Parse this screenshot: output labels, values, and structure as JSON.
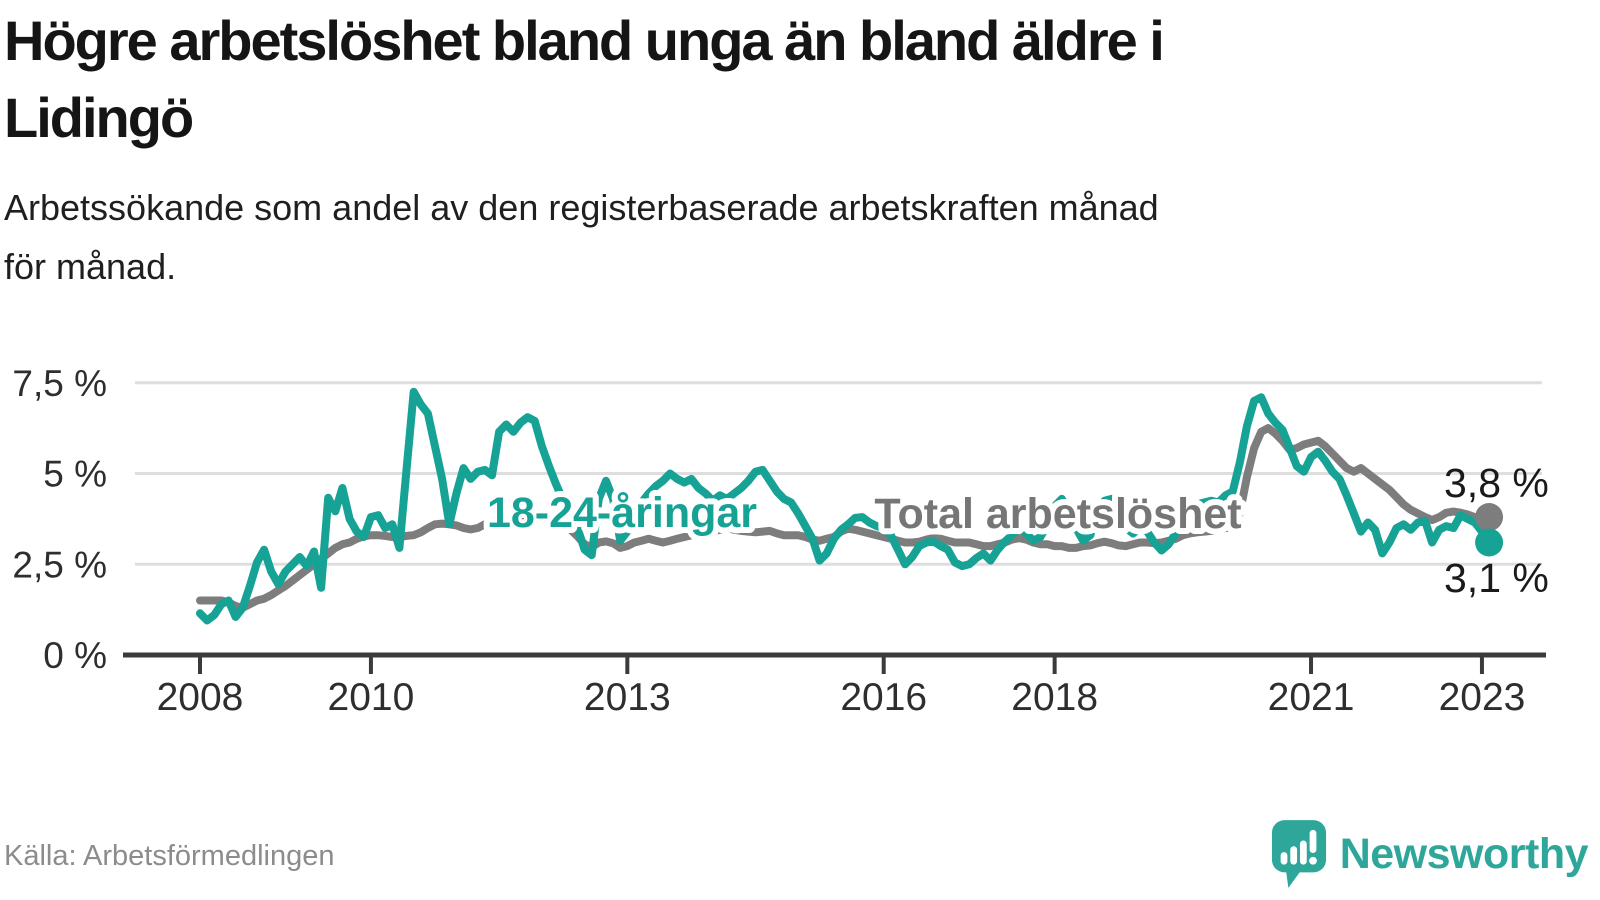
{
  "header": {
    "title_lines": [
      "Högre arbetslöshet bland unga än bland äldre i",
      "Lidingö"
    ],
    "subtitle_lines": [
      "Arbetssökande som andel av den registerbaserade arbetskraften månad",
      "för månad."
    ]
  },
  "footer": {
    "source": "Källa: Arbetsförmedlingen",
    "brand_name": "Newsworthy",
    "brand_icon": "speech-bubble-bar-chart-exclamation-icon"
  },
  "colors": {
    "youth_line": "#17a296",
    "total_line": "#7d7d7d",
    "total_label": "#767676",
    "grid": "#dedede",
    "axis": "#3b3b3b",
    "tick_text": "#2e2e2e",
    "end_label_text": "#1a1a1a",
    "source_text": "#8c8c8c",
    "brand_teal": "#2ea79a"
  },
  "chart_data": {
    "type": "line",
    "frequency": "monthly",
    "x_start": "2008-01",
    "x_end": "2023-02",
    "ylabel": "",
    "xlabel": "",
    "ylim": [
      0,
      7.9
    ],
    "grid": "horizontal",
    "legend_position": "inline-on-lines",
    "y_ticks": [
      {
        "label": "0 %",
        "value": 0
      },
      {
        "label": "2,5 %",
        "value": 2.5
      },
      {
        "label": "5 %",
        "value": 5
      },
      {
        "label": "7,5 %",
        "value": 7.5
      }
    ],
    "x_ticks": [
      {
        "label": "2008",
        "year": 2008
      },
      {
        "label": "2010",
        "year": 2010
      },
      {
        "label": "2013",
        "year": 2013
      },
      {
        "label": "2016",
        "year": 2016
      },
      {
        "label": "2018",
        "year": 2018
      },
      {
        "label": "2021",
        "year": 2021
      },
      {
        "label": "2023",
        "year": 2023
      }
    ],
    "series": [
      {
        "name": "18-24-åringar",
        "color": "#17a296",
        "end_label": "3,1 %",
        "values": [
          1.15,
          0.95,
          1.1,
          1.4,
          1.5,
          1.05,
          1.3,
          1.9,
          2.55,
          2.9,
          2.3,
          1.95,
          2.3,
          2.5,
          2.7,
          2.45,
          2.85,
          1.85,
          4.33,
          3.96,
          4.6,
          3.75,
          3.4,
          3.25,
          3.8,
          3.85,
          3.5,
          3.6,
          2.95,
          5.1,
          7.25,
          6.9,
          6.65,
          5.75,
          4.85,
          3.6,
          4.45,
          5.15,
          4.85,
          5.05,
          5.1,
          4.95,
          6.15,
          6.35,
          6.15,
          6.4,
          6.55,
          6.45,
          5.75,
          5.2,
          4.7,
          4.25,
          3.8,
          3.5,
          2.9,
          2.75,
          4.3,
          4.8,
          4.3,
          3.15,
          3.4,
          3.9,
          4.2,
          4.45,
          4.65,
          4.8,
          5.0,
          4.85,
          4.75,
          4.85,
          4.6,
          4.45,
          4.25,
          4.4,
          4.3,
          4.45,
          4.6,
          4.8,
          5.05,
          5.1,
          4.8,
          4.5,
          4.3,
          4.2,
          3.9,
          3.55,
          3.2,
          2.6,
          2.8,
          3.2,
          3.45,
          3.6,
          3.78,
          3.8,
          3.65,
          3.55,
          3.5,
          3.3,
          2.9,
          2.5,
          2.7,
          3.0,
          3.1,
          3.13,
          3.0,
          2.9,
          2.55,
          2.45,
          2.5,
          2.67,
          2.8,
          2.6,
          2.9,
          3.12,
          3.3,
          3.5,
          3.35,
          3.15,
          3.25,
          3.6,
          4.1,
          4.3,
          3.95,
          3.5,
          3.15,
          3.3,
          3.9,
          4.25,
          4.3,
          3.85,
          3.5,
          3.35,
          3.5,
          3.4,
          3.1,
          2.88,
          3.05,
          3.35,
          3.8,
          4.1,
          4.15,
          4.2,
          4.25,
          4.2,
          4.4,
          4.5,
          5.3,
          6.3,
          7.0,
          7.1,
          6.65,
          6.4,
          6.2,
          5.7,
          5.2,
          5.05,
          5.45,
          5.6,
          5.35,
          5.05,
          4.85,
          4.4,
          3.9,
          3.4,
          3.65,
          3.45,
          2.8,
          3.1,
          3.5,
          3.6,
          3.45,
          3.65,
          3.7,
          3.1,
          3.45,
          3.55,
          3.5,
          3.85,
          3.75,
          3.65,
          3.4,
          3.1
        ]
      },
      {
        "name": "Total arbetslöshet",
        "color": "#7d7d7d",
        "end_label": "3,8 %",
        "values": [
          1.5,
          1.5,
          1.5,
          1.5,
          1.45,
          1.35,
          1.3,
          1.4,
          1.5,
          1.55,
          1.65,
          1.78,
          1.9,
          2.05,
          2.2,
          2.35,
          2.5,
          2.65,
          2.8,
          2.95,
          3.05,
          3.1,
          3.2,
          3.27,
          3.3,
          3.3,
          3.28,
          3.25,
          3.25,
          3.28,
          3.3,
          3.38,
          3.5,
          3.6,
          3.62,
          3.6,
          3.57,
          3.5,
          3.46,
          3.5,
          3.6,
          3.57,
          3.52,
          3.55,
          3.6,
          3.65,
          3.68,
          3.72,
          3.74,
          3.68,
          3.6,
          3.52,
          3.46,
          3.27,
          3.05,
          2.97,
          3.1,
          3.13,
          3.08,
          2.95,
          3.0,
          3.1,
          3.15,
          3.2,
          3.15,
          3.1,
          3.15,
          3.2,
          3.25,
          3.3,
          3.33,
          3.35,
          3.4,
          3.45,
          3.5,
          3.45,
          3.42,
          3.4,
          3.38,
          3.4,
          3.42,
          3.35,
          3.3,
          3.3,
          3.3,
          3.25,
          3.18,
          3.15,
          3.2,
          3.25,
          3.4,
          3.48,
          3.45,
          3.4,
          3.35,
          3.3,
          3.25,
          3.2,
          3.15,
          3.1,
          3.1,
          3.12,
          3.18,
          3.22,
          3.2,
          3.15,
          3.1,
          3.1,
          3.1,
          3.05,
          3.0,
          3.0,
          3.05,
          3.1,
          3.18,
          3.22,
          3.18,
          3.1,
          3.05,
          3.05,
          3.0,
          3.0,
          2.95,
          2.95,
          3.0,
          3.02,
          3.08,
          3.12,
          3.08,
          3.02,
          3.0,
          3.05,
          3.1,
          3.1,
          3.08,
          3.1,
          3.15,
          3.2,
          3.3,
          3.35,
          3.38,
          3.4,
          3.42,
          3.45,
          3.5,
          3.5,
          3.9,
          4.9,
          5.7,
          6.15,
          6.25,
          6.1,
          5.9,
          5.65,
          5.7,
          5.8,
          5.85,
          5.9,
          5.75,
          5.55,
          5.35,
          5.15,
          5.05,
          5.15,
          5.0,
          4.85,
          4.7,
          4.55,
          4.35,
          4.15,
          4.0,
          3.9,
          3.8,
          3.72,
          3.8,
          3.92,
          3.95,
          3.92,
          3.87,
          3.8,
          3.72,
          3.8
        ]
      }
    ]
  }
}
